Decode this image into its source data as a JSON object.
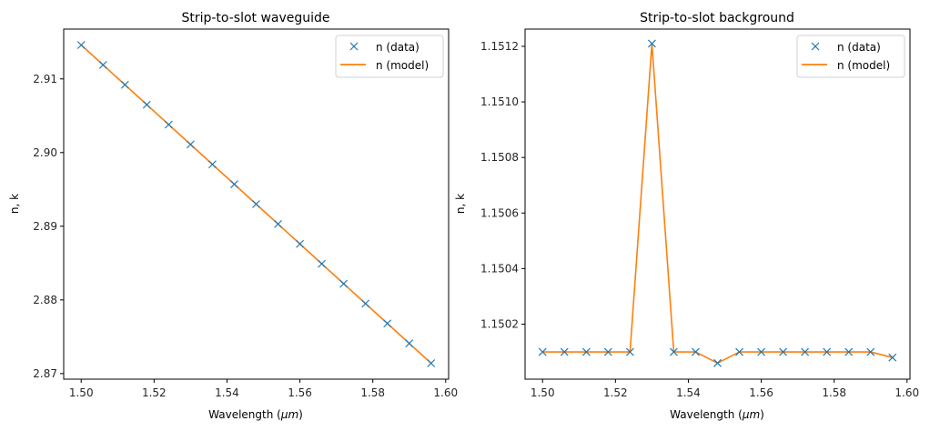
{
  "colors": {
    "data": "#1f77b4",
    "model": "#ff7f0e",
    "axis": "#000000"
  },
  "chart_data": [
    {
      "type": "line",
      "title": "Strip-to-slot waveguide",
      "xlabel": "Wavelength (",
      "xlabel_unit": "μm",
      "xlabel_close": ")",
      "ylabel": "n, k",
      "xlim": [
        1.4952,
        1.6008
      ],
      "ylim": [
        2.86924,
        2.91676
      ],
      "xticks": [
        1.5,
        1.52,
        1.54,
        1.56,
        1.58,
        1.6
      ],
      "xtick_labels": [
        "1.50",
        "1.52",
        "1.54",
        "1.56",
        "1.58",
        "1.60"
      ],
      "yticks": [
        2.87,
        2.88,
        2.89,
        2.9,
        2.91
      ],
      "ytick_labels": [
        "2.87",
        "2.88",
        "2.89",
        "2.90",
        "2.91"
      ],
      "legend": {
        "position": "top-right",
        "entries": [
          "n (data)",
          "n (model)"
        ]
      },
      "x": [
        1.5,
        1.506,
        1.512,
        1.518,
        1.524,
        1.53,
        1.536,
        1.542,
        1.548,
        1.554,
        1.56,
        1.566,
        1.572,
        1.578,
        1.584,
        1.59,
        1.596
      ],
      "series": [
        {
          "name": "n (data)",
          "style": "marker-x",
          "values": [
            2.9146,
            2.9119,
            2.9092,
            2.9065,
            2.9038,
            2.9011,
            2.8984,
            2.8957,
            2.893,
            2.8903,
            2.8876,
            2.8849,
            2.8822,
            2.8795,
            2.8768,
            2.8741,
            2.8714
          ]
        },
        {
          "name": "n (model)",
          "style": "line",
          "values": [
            2.9146,
            2.9119,
            2.9092,
            2.9065,
            2.9038,
            2.9011,
            2.8984,
            2.8957,
            2.893,
            2.8903,
            2.8876,
            2.8849,
            2.8822,
            2.8795,
            2.8768,
            2.8741,
            2.8714
          ]
        }
      ]
    },
    {
      "type": "line",
      "title": "Strip-to-slot background",
      "xlabel": "Wavelength (",
      "xlabel_unit": "μm",
      "xlabel_close": ")",
      "ylabel": "n, k",
      "xlim": [
        1.4952,
        1.6008
      ],
      "ylim": [
        1.150002,
        1.151262
      ],
      "xticks": [
        1.5,
        1.52,
        1.54,
        1.56,
        1.58,
        1.6
      ],
      "xtick_labels": [
        "1.50",
        "1.52",
        "1.54",
        "1.56",
        "1.58",
        "1.60"
      ],
      "yticks": [
        1.1502,
        1.1504,
        1.1506,
        1.1508,
        1.151,
        1.1512
      ],
      "ytick_labels": [
        "1.1502",
        "1.1504",
        "1.1506",
        "1.1508",
        "1.1510",
        "1.1512"
      ],
      "legend": {
        "position": "top-right",
        "entries": [
          "n (data)",
          "n (model)"
        ]
      },
      "x": [
        1.5,
        1.506,
        1.512,
        1.518,
        1.524,
        1.53,
        1.536,
        1.542,
        1.548,
        1.554,
        1.56,
        1.566,
        1.572,
        1.578,
        1.584,
        1.59,
        1.596
      ],
      "series": [
        {
          "name": "n (data)",
          "style": "marker-x",
          "values": [
            1.1501,
            1.1501,
            1.1501,
            1.1501,
            1.1501,
            1.15121,
            1.1501,
            1.1501,
            1.15006,
            1.1501,
            1.1501,
            1.1501,
            1.1501,
            1.1501,
            1.1501,
            1.1501,
            1.15008
          ]
        },
        {
          "name": "n (model)",
          "style": "line",
          "values": [
            1.1501,
            1.1501,
            1.1501,
            1.1501,
            1.1501,
            1.15121,
            1.1501,
            1.1501,
            1.15006,
            1.1501,
            1.1501,
            1.1501,
            1.1501,
            1.1501,
            1.1501,
            1.1501,
            1.15008
          ]
        }
      ]
    }
  ]
}
